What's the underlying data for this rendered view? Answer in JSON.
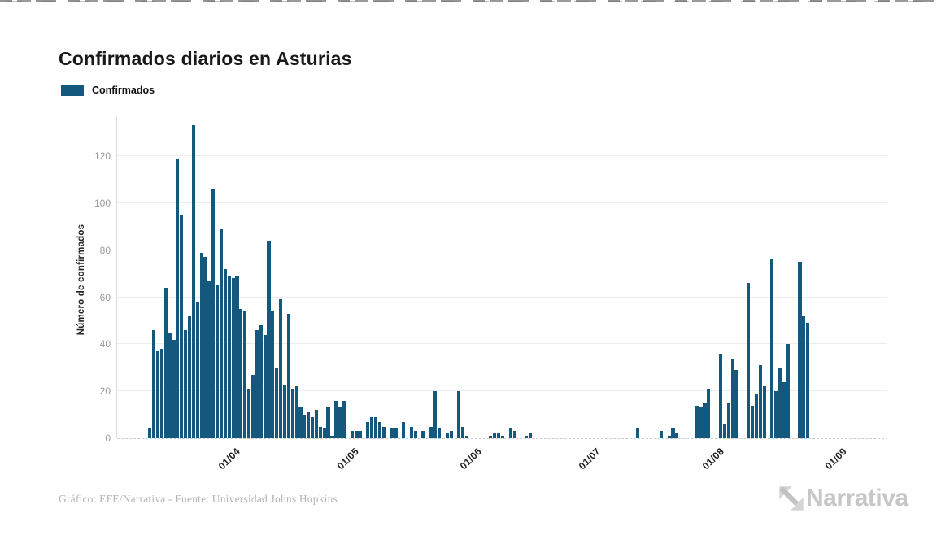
{
  "header": {
    "title": "Confirmados diarios en Asturias"
  },
  "legend": {
    "label": "Confirmados"
  },
  "footer": {
    "credit": "Gráfico: EFE/Narrativa - Fuente: Universidad Johns Hopkins",
    "logo_text": "Narrativa"
  },
  "colors": {
    "bar": "#14587e",
    "grid": "#ececec",
    "tick_label": "#9b9b9b"
  },
  "chart_data": {
    "type": "bar",
    "title": "Confirmados diarios en Asturias",
    "series_name": "Confirmados",
    "bar_color": "#14587e",
    "ylabel": "Número de confirmados",
    "xlabel": "",
    "grid": true,
    "legend_position": "top-left",
    "y_ticks": [
      0,
      20,
      40,
      60,
      80,
      100,
      120
    ],
    "ylim": [
      0,
      134
    ],
    "x_start_date": "14/03",
    "x_end_date": "27/08",
    "x_tick_labels": [
      "01/04",
      "01/05",
      "01/06",
      "01/07",
      "01/08",
      "01/09"
    ],
    "x_tick_day_indices": [
      18,
      48,
      79,
      109,
      140,
      171
    ],
    "values": [
      4,
      46,
      37,
      38,
      64,
      45,
      42,
      119,
      95,
      46,
      52,
      133,
      58,
      79,
      77,
      67,
      106,
      65,
      89,
      72,
      69,
      68,
      69,
      55,
      54,
      21,
      27,
      46,
      48,
      44,
      84,
      54,
      30,
      59,
      23,
      53,
      21,
      22,
      13,
      10,
      11,
      9,
      12,
      5,
      4,
      13,
      1,
      16,
      13,
      16,
      0,
      3,
      3,
      3,
      0,
      7,
      9,
      9,
      7,
      5,
      0,
      4,
      4,
      0,
      7,
      0,
      5,
      3,
      0,
      3,
      0,
      5,
      20,
      4,
      0,
      2,
      3,
      0,
      20,
      5,
      1,
      0,
      0,
      0,
      0,
      0,
      1,
      2,
      2,
      1,
      0,
      4,
      3,
      0,
      0,
      1,
      2,
      0,
      0,
      0,
      0,
      0,
      0,
      0,
      0,
      0,
      0,
      0,
      0,
      0,
      0,
      0,
      0,
      0,
      0,
      0,
      0,
      0,
      0,
      0,
      0,
      0,
      0,
      4,
      0,
      0,
      0,
      0,
      0,
      3,
      0,
      1,
      4,
      2,
      0,
      0,
      0,
      0,
      14,
      13,
      15,
      21,
      0,
      0,
      36,
      6,
      15,
      34,
      29,
      0,
      0,
      66,
      14,
      19,
      31,
      22,
      0,
      76,
      20,
      30,
      24,
      40,
      0,
      0,
      75,
      52,
      49
    ]
  }
}
